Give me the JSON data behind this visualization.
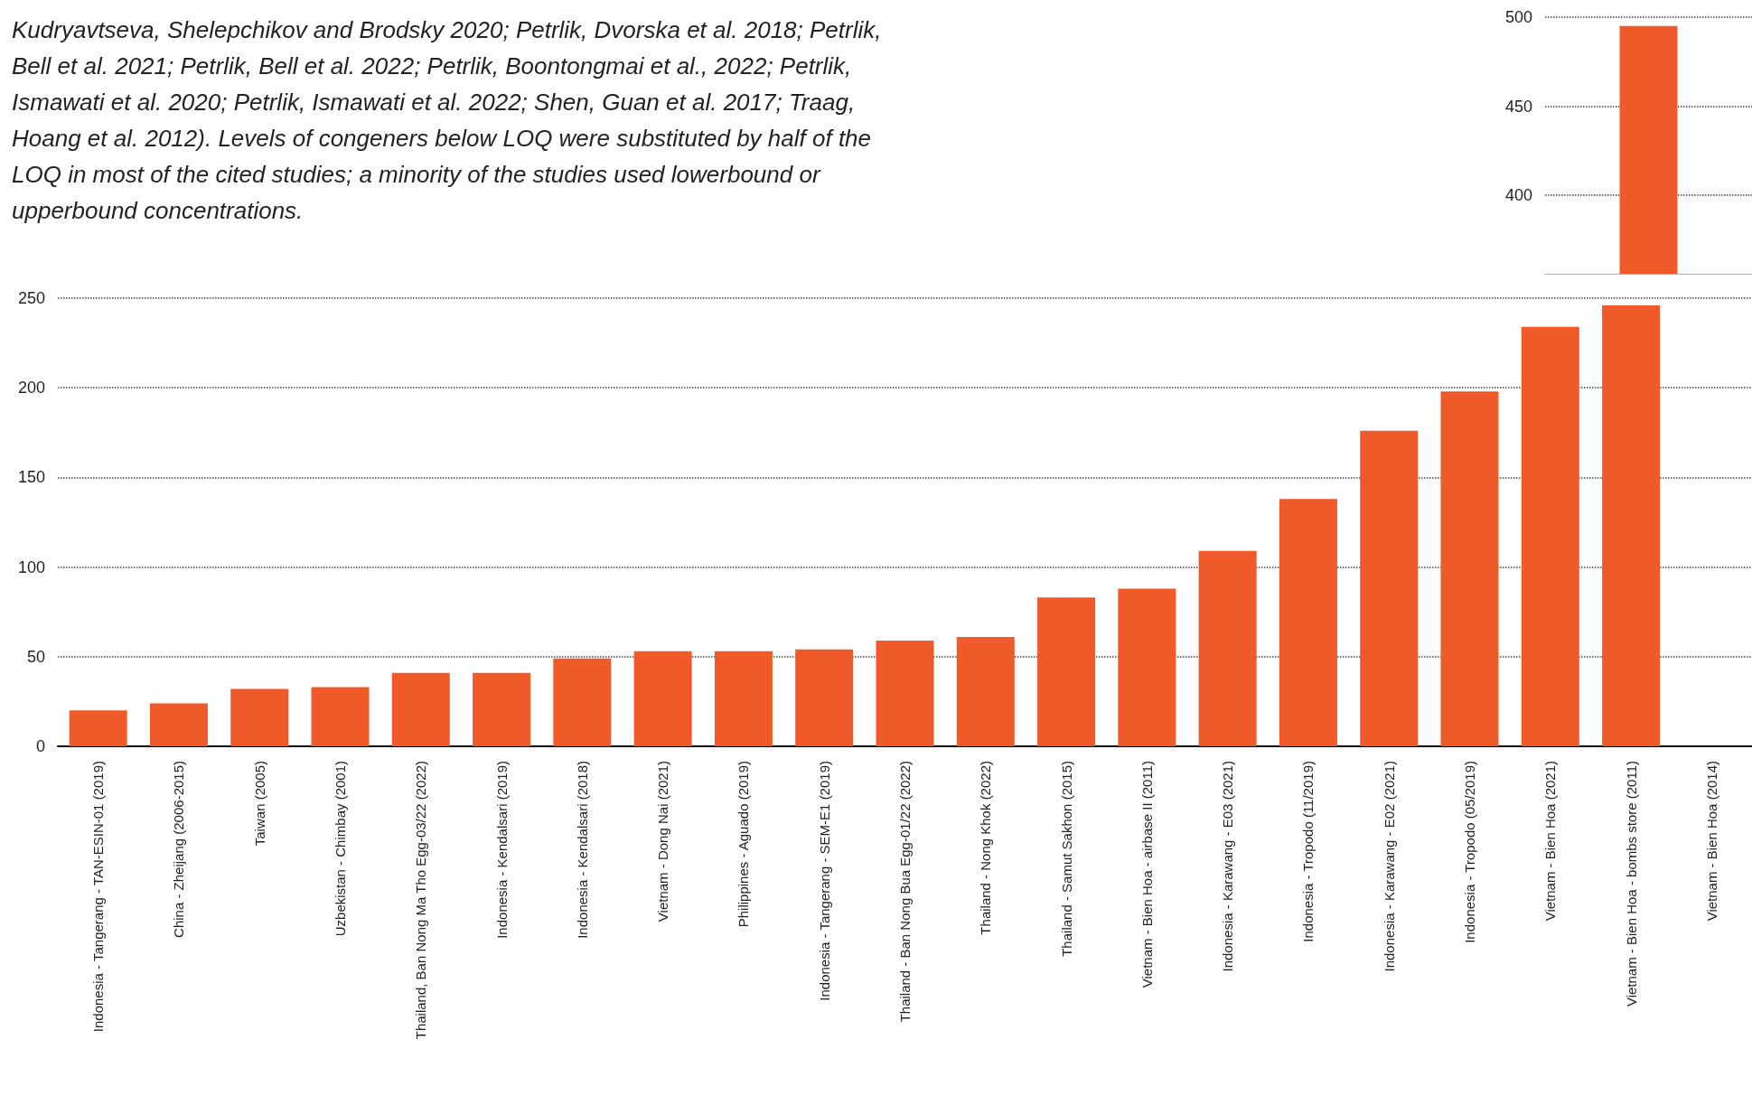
{
  "chart_data": [
    {
      "type": "bar",
      "categories": [
        null
      ],
      "values": [
        495
      ],
      "color": "#f05a28",
      "ylim": [
        356,
        500
      ],
      "yticks": [
        400,
        450,
        500
      ],
      "grid": "y",
      "tick_labels": "y"
    },
    {
      "type": "bar",
      "annotations": [
        "Kudryavtseva, Shelepchikov and Brodsky 2020; Petrlik, Dvorska et al. 2018; Petrlik, Bell et al. 2021; Petrlik, Bell et al. 2022; Petrlik, Boontongmai et al., 2022; Petrlik, Ismawati et al. 2020; Petrlik, Ismawati et al. 2022; Shen, Guan et al. 2017; Traag, Hoang et al. 2012). Levels of congeners below LOQ were substituted by half of the LOQ in most of the cited studies; a minority of the studies used lowerbound or upperbound concentrations."
      ],
      "categories": [
        "Indonesia - Tangerang - TAN-ESIN-01 (2019)",
        "China - Zheijang (2006-2015)",
        "Taiwan (2005)",
        "Uzbekistan - Chimbay (2001)",
        "Thailand, Ban Nong Ma Tho Egg-03/22 (2022)",
        "Indonesia - Kendalsari (2019)",
        "Indonesia - Kendalsari (2018)",
        "Vietnam - Dong Nai (2021)",
        "Philippines - Aguado (2019)",
        "Indonesia - Tangerang - SEM-E1 (2019)",
        "Thailand - Ban Nong Bua Egg-01/22 (2022)",
        "Thailand - Nong Khok (2022)",
        "Thailand - Samut Sakhon (2015)",
        "Vietnam - Bien Hoa - airbase II (2011)",
        "Indonesia - Karawang - E03 (2021)",
        "Indonesia - Tropodo (11/2019)",
        "Indonesia - Karawang - E02 (2021)",
        "Indonesia - Tropodo (05/2019)",
        "Vietnam - Bien Hoa (2021)",
        "Vietnam - Bien Hoa - bombs store (2011)",
        "Vietnam - Bien Hoa (2014)"
      ],
      "values": [
        20,
        24,
        32,
        33,
        41,
        41,
        49,
        53,
        53,
        54,
        59,
        61,
        83,
        88,
        109,
        138,
        176,
        198,
        234,
        246,
        null
      ],
      "color": "#f05a28",
      "ylim": [
        0,
        250
      ],
      "yticks": [
        0,
        50,
        100,
        150,
        200,
        250
      ],
      "grid": "y"
    }
  ]
}
